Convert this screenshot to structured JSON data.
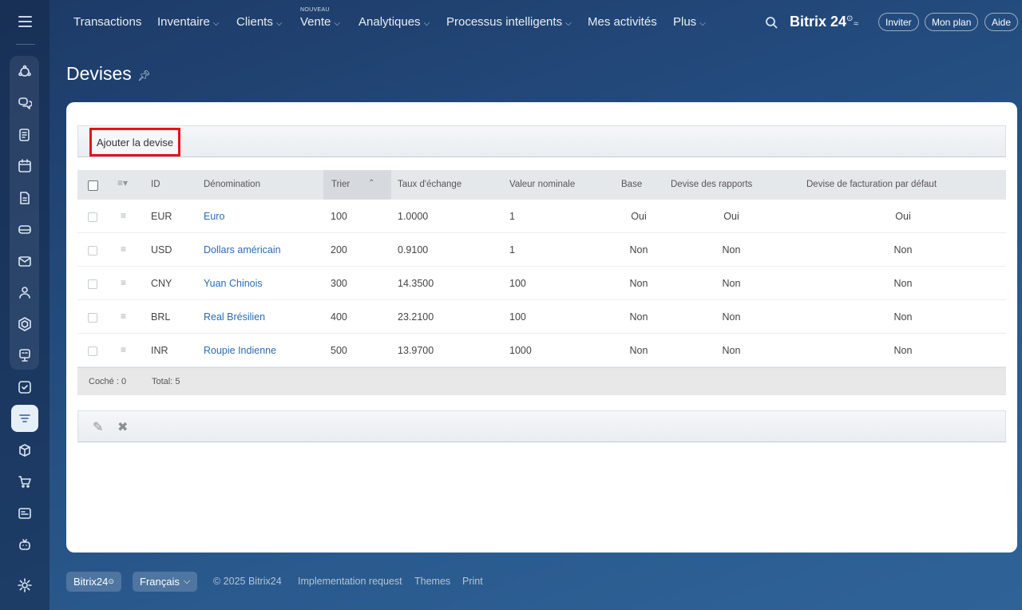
{
  "nav": {
    "items": [
      {
        "label": "Transactions",
        "chevron": false
      },
      {
        "label": "Inventaire",
        "chevron": true
      },
      {
        "label": "Clients",
        "chevron": true
      },
      {
        "label": "Vente",
        "chevron": true
      },
      {
        "label": "Analytiques",
        "chevron": true
      },
      {
        "label": "Processus intelligents",
        "chevron": true
      },
      {
        "label": "Mes activités",
        "chevron": false
      },
      {
        "label": "Plus",
        "chevron": true
      }
    ],
    "new_badge": "NOUVEAU",
    "brand": "Bitrix 24",
    "brand_mark": "⊙",
    "invite": "Inviter",
    "plan": "Mon plan",
    "help": "Aide"
  },
  "page": {
    "title": "Devises"
  },
  "toolbar": {
    "add_label": "Ajouter la devise"
  },
  "grid": {
    "headers": {
      "id": "ID",
      "name": "Dénomination",
      "sort": "Trier",
      "rate": "Taux d'échange",
      "nominal": "Valeur nominale",
      "base": "Base",
      "report": "Devise des rapports",
      "billing": "Devise de facturation par défaut"
    },
    "rows": [
      {
        "id": "EUR",
        "name": "Euro",
        "sort": "100",
        "rate": "1.0000",
        "nominal": "1",
        "base": "Oui",
        "report": "Oui",
        "billing": "Oui"
      },
      {
        "id": "USD",
        "name": "Dollars américain",
        "sort": "200",
        "rate": "0.9100",
        "nominal": "1",
        "base": "Non",
        "report": "Non",
        "billing": "Non"
      },
      {
        "id": "CNY",
        "name": "Yuan Chinois",
        "sort": "300",
        "rate": "14.3500",
        "nominal": "100",
        "base": "Non",
        "report": "Non",
        "billing": "Non"
      },
      {
        "id": "BRL",
        "name": "Real Brésilien",
        "sort": "400",
        "rate": "23.2100",
        "nominal": "100",
        "base": "Non",
        "report": "Non",
        "billing": "Non"
      },
      {
        "id": "INR",
        "name": "Roupie Indienne",
        "sort": "500",
        "rate": "13.9700",
        "nominal": "1000",
        "base": "Non",
        "report": "Non",
        "billing": "Non"
      }
    ],
    "checked": "Coché : 0",
    "total": "Total: 5"
  },
  "footer": {
    "brand": "Bitrix24",
    "brand_mark": "⊙",
    "language": "Français",
    "copyright": "© 2025 Bitrix24",
    "implementation": "Implementation request",
    "themes": "Themes",
    "print": "Print"
  },
  "colors": {
    "accent": "#2d6bb0",
    "highlight_border": "#e3131b"
  }
}
